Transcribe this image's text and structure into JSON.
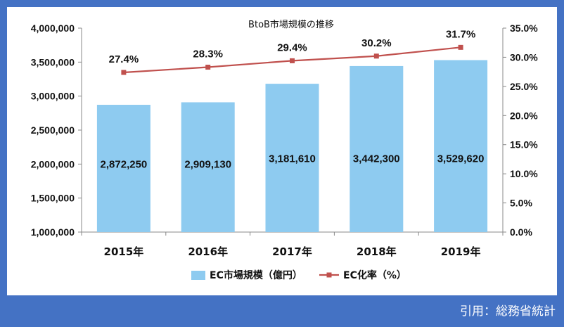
{
  "chart_data": {
    "type": "bar",
    "title": "BtoB市場規模の推移",
    "categories": [
      "2015年",
      "2016年",
      "2017年",
      "2018年",
      "2019年"
    ],
    "series": [
      {
        "name": "EC市場規模（億円）",
        "type": "bar",
        "axis": "left",
        "values": [
          2872250,
          2909130,
          3181610,
          3442300,
          3529620
        ],
        "labels": [
          "2,872,250",
          "2,909,130",
          "3,181,610",
          "3,442,300",
          "3,529,620"
        ]
      },
      {
        "name": "EC化率（%）",
        "type": "line",
        "axis": "right",
        "values": [
          27.4,
          28.3,
          29.4,
          30.2,
          31.7
        ],
        "labels": [
          "27.4%",
          "28.3%",
          "29.4%",
          "30.2%",
          "31.7%"
        ]
      }
    ],
    "y_left": {
      "min": 1000000,
      "max": 4000000,
      "ticks": [
        1000000,
        1500000,
        2000000,
        2500000,
        3000000,
        3500000,
        4000000
      ],
      "tick_labels": [
        "1,000,000",
        "1,500,000",
        "2,000,000",
        "2,500,000",
        "3,000,000",
        "3,500,000",
        "4,000,000"
      ]
    },
    "y_right": {
      "min": 0,
      "max": 35,
      "ticks": [
        0,
        5,
        10,
        15,
        20,
        25,
        30,
        35
      ],
      "tick_labels": [
        "0.0%",
        "5.0%",
        "10.0%",
        "15.0%",
        "20.0%",
        "25.0%",
        "30.0%",
        "35.0%"
      ]
    },
    "legend_position": "bottom",
    "grid": false,
    "colors": {
      "bar": "#8ecbf0",
      "line": "#c0504d",
      "axis": "#888888"
    }
  },
  "source_note": "引用：総務省統計"
}
